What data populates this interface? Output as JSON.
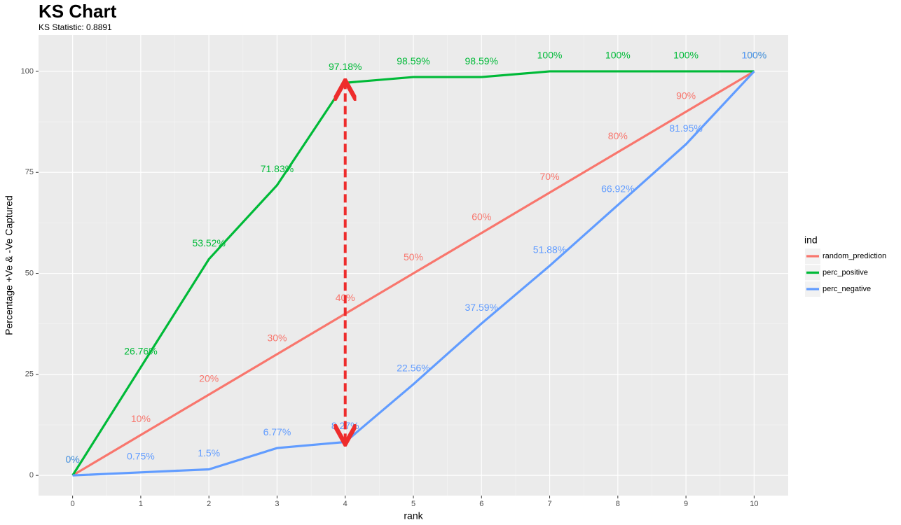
{
  "chart_data": {
    "type": "line",
    "title": "KS Chart",
    "subtitle": "KS Statistic:  0.8891",
    "x_label": "rank",
    "y_label": "Percentage +Ve & -Ve Captured",
    "legend_title": "ind",
    "legend_position": "right",
    "grid": true,
    "x": [
      0,
      1,
      2,
      3,
      4,
      5,
      6,
      7,
      8,
      9,
      10
    ],
    "xlim": [
      -0.5,
      10.5
    ],
    "xticks": [
      0,
      1,
      2,
      3,
      4,
      5,
      6,
      7,
      8,
      9,
      10
    ],
    "ylim": [
      -5,
      109
    ],
    "yticks": [
      0,
      25,
      50,
      75,
      100
    ],
    "series": [
      {
        "name": "random_prediction",
        "color": "#F8766D",
        "values": [
          0,
          10,
          20,
          30,
          40,
          50,
          60,
          70,
          80,
          90,
          100
        ],
        "value_labels": [
          "0%",
          "10%",
          "20%",
          "30%",
          "40%",
          "50%",
          "60%",
          "70%",
          "80%",
          "90%",
          "100%"
        ]
      },
      {
        "name": "perc_positive",
        "color": "#00BA38",
        "values": [
          0,
          26.76,
          53.52,
          71.83,
          97.18,
          98.59,
          98.59,
          100,
          100,
          100,
          100
        ],
        "value_labels": [
          "0%",
          "26.76%",
          "53.52%",
          "71.83%",
          "97.18%",
          "98.59%",
          "98.59%",
          "100%",
          "100%",
          "100%",
          "100%"
        ]
      },
      {
        "name": "perc_negative",
        "color": "#619CFF",
        "values": [
          0,
          0.75,
          1.5,
          6.77,
          8.27,
          22.56,
          37.59,
          51.88,
          66.92,
          81.95,
          100
        ],
        "value_labels": [
          "0%",
          "0.75%",
          "1.5%",
          "6.77%",
          "8.27%",
          "22.56%",
          "37.59%",
          "51.88%",
          "66.92%",
          "81.95%",
          "100%"
        ]
      }
    ],
    "ks_arrow_color": "#EE2C2C"
  }
}
